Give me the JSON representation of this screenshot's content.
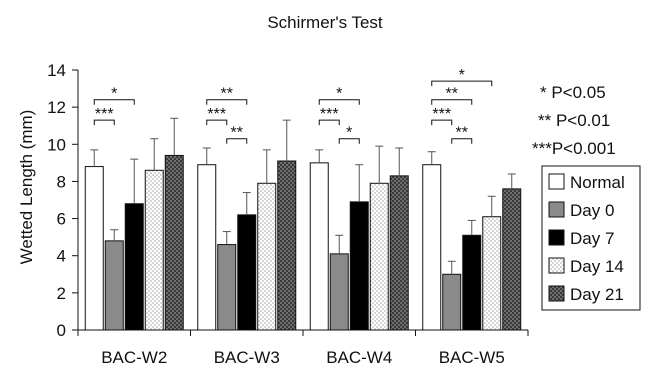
{
  "chart_data": {
    "type": "bar",
    "title": "Schirmer's Test",
    "ylabel": "Wetted Length (mm)",
    "xlabel": "",
    "ylim": [
      0,
      14
    ],
    "yticks": [
      0,
      2,
      4,
      6,
      8,
      10,
      12,
      14
    ],
    "grid": false,
    "legend_position": "right",
    "categories": [
      "BAC-W2",
      "BAC-W3",
      "BAC-W4",
      "BAC-W5"
    ],
    "series": [
      {
        "name": "Normal",
        "pattern": "white",
        "values": [
          8.8,
          8.9,
          9.0,
          8.9
        ],
        "errors": [
          0.9,
          0.9,
          0.7,
          0.7
        ]
      },
      {
        "name": "Day 0",
        "pattern": "gray",
        "values": [
          4.8,
          4.6,
          4.1,
          3.0
        ],
        "errors": [
          0.6,
          0.7,
          1.0,
          0.7
        ]
      },
      {
        "name": "Day 7",
        "pattern": "black",
        "values": [
          6.8,
          6.2,
          6.9,
          5.1
        ],
        "errors": [
          2.4,
          1.2,
          2.0,
          0.8
        ]
      },
      {
        "name": "Day 14",
        "pattern": "lightdots",
        "values": [
          8.6,
          7.9,
          7.9,
          6.1
        ],
        "errors": [
          1.7,
          1.8,
          2.0,
          1.1
        ]
      },
      {
        "name": "Day 21",
        "pattern": "darkcheck",
        "values": [
          9.4,
          9.1,
          8.3,
          7.6
        ],
        "errors": [
          2.0,
          2.2,
          1.5,
          0.8
        ]
      }
    ],
    "significance_legend": [
      "* P<0.05",
      "** P<0.01",
      "***P<0.001"
    ],
    "annotations": [
      {
        "category": 0,
        "from": 0,
        "to": 2,
        "y": 12.4,
        "label": "*"
      },
      {
        "category": 0,
        "from": 0,
        "to": 1,
        "y": 11.3,
        "label": "***"
      },
      {
        "category": 1,
        "from": 0,
        "to": 2,
        "y": 12.4,
        "label": "**"
      },
      {
        "category": 1,
        "from": 0,
        "to": 1,
        "y": 11.3,
        "label": "***"
      },
      {
        "category": 1,
        "from": 1,
        "to": 2,
        "y": 10.3,
        "label": "**"
      },
      {
        "category": 2,
        "from": 0,
        "to": 2,
        "y": 12.4,
        "label": "*"
      },
      {
        "category": 2,
        "from": 0,
        "to": 1,
        "y": 11.3,
        "label": "***"
      },
      {
        "category": 2,
        "from": 1,
        "to": 2,
        "y": 10.3,
        "label": "*"
      },
      {
        "category": 3,
        "from": 0,
        "to": 3,
        "y": 13.4,
        "label": "*"
      },
      {
        "category": 3,
        "from": 0,
        "to": 2,
        "y": 12.4,
        "label": "**"
      },
      {
        "category": 3,
        "from": 0,
        "to": 1,
        "y": 11.3,
        "label": "***"
      },
      {
        "category": 3,
        "from": 1,
        "to": 2,
        "y": 10.3,
        "label": "**"
      }
    ]
  }
}
